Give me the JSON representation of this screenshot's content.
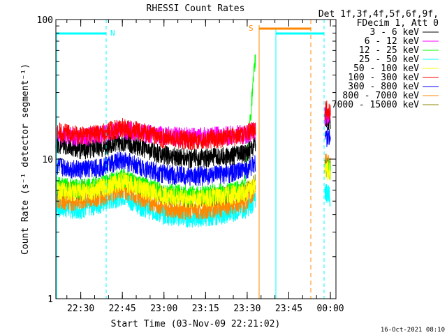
{
  "chart_data": {
    "type": "line",
    "title": "RHESSI Count Rates",
    "xlabel": "Start Time (03-Nov-09 22:21:02)",
    "ylabel": "Count Rate (s⁻¹ detector segment⁻¹)",
    "yscale": "log",
    "ylim": [
      1,
      100
    ],
    "xlim": [
      "22:21:02",
      "00:02:00"
    ],
    "x_tick_labels": [
      "22:30",
      "22:45",
      "23:00",
      "23:15",
      "23:30",
      "23:45",
      "00:00"
    ],
    "y_tick_labels": [
      "1",
      "10",
      "100"
    ],
    "legend": {
      "header": [
        "Det 1f,3f,4f,5f,6f,9f,",
        "FDecim 1, Att 0"
      ],
      "placement": "right-outside"
    },
    "series": [
      {
        "name": "3 - 6 keV",
        "color": "#000000",
        "x": [
          "22:21",
          "22:30",
          "22:37",
          "22:45",
          "22:52",
          "23:00",
          "23:10",
          "23:20",
          "23:29",
          "23:33"
        ],
        "y": [
          13,
          11.8,
          12,
          13.5,
          12.2,
          10.8,
          10.2,
          10.4,
          11,
          12.5
        ],
        "x2": [
          "23:58",
          "00:00"
        ],
        "y2": [
          20,
          19
        ]
      },
      {
        "name": "6 - 12 keV",
        "color": "#ff00ff",
        "x": [
          "22:21",
          "22:30",
          "22:37",
          "22:45",
          "22:52",
          "23:00",
          "23:10",
          "23:20",
          "23:29",
          "23:33"
        ],
        "y": [
          15,
          14.5,
          15,
          16.5,
          15.5,
          14.8,
          14.6,
          14.8,
          15.2,
          16
        ],
        "x2": [
          "23:58",
          "00:00"
        ],
        "y2": [
          21,
          20
        ]
      },
      {
        "name": "12 - 25 keV",
        "color": "#00ff00",
        "x": [
          "22:21",
          "22:30",
          "22:37",
          "22:45",
          "22:52",
          "23:00",
          "23:10",
          "23:20",
          "23:29",
          "23:33"
        ],
        "y": [
          6.5,
          6.2,
          6.6,
          7.5,
          6.6,
          5.8,
          5.6,
          5.8,
          6.2,
          55
        ],
        "x2": [
          "23:58",
          "00:00"
        ],
        "y2": [
          9,
          8.5
        ]
      },
      {
        "name": "25 - 50 keV",
        "color": "#00ffff",
        "x": [
          "22:21",
          "22:30",
          "22:37",
          "22:45",
          "22:52",
          "23:00",
          "23:10",
          "23:20",
          "23:29",
          "23:33"
        ],
        "y": [
          4.5,
          4.4,
          4.8,
          5.5,
          4.6,
          4.0,
          3.8,
          4.0,
          4.4,
          5
        ],
        "x2": [
          "23:58",
          "00:00"
        ],
        "y2": [
          6,
          5.5
        ]
      },
      {
        "name": "50 - 100 keV",
        "color": "#ffff00",
        "x": [
          "22:21",
          "22:30",
          "22:37",
          "22:45",
          "22:52",
          "23:00",
          "23:10",
          "23:20",
          "23:29",
          "23:33"
        ],
        "y": [
          6,
          5.8,
          6.2,
          7,
          6.2,
          5.5,
          5.2,
          5.4,
          5.8,
          6.5
        ],
        "x2": [
          "23:58",
          "00:00"
        ],
        "y2": [
          8.5,
          8
        ]
      },
      {
        "name": "100 - 300 keV",
        "color": "#ff0000",
        "x": [
          "22:21",
          "22:30",
          "22:37",
          "22:45",
          "22:52",
          "23:00",
          "23:10",
          "23:20",
          "23:29",
          "23:33"
        ],
        "y": [
          16,
          15,
          15.5,
          17,
          15.8,
          14.2,
          13.8,
          14.2,
          15,
          17
        ],
        "x2": [
          "23:58",
          "00:00"
        ],
        "y2": [
          23,
          22
        ]
      },
      {
        "name": "300 - 800 keV",
        "color": "#0000ff",
        "x": [
          "22:21",
          "22:30",
          "22:37",
          "22:45",
          "22:52",
          "23:00",
          "23:10",
          "23:20",
          "23:29",
          "23:33"
        ],
        "y": [
          9,
          8.4,
          8.8,
          10,
          8.8,
          7.9,
          7.6,
          7.8,
          8.3,
          9.5
        ],
        "x2": [
          "23:58",
          "00:00"
        ],
        "y2": [
          15,
          14
        ]
      },
      {
        "name": "800 - 7000 keV",
        "color": "#ff8800",
        "x": [
          "22:21",
          "22:30",
          "22:37",
          "22:45",
          "22:52",
          "23:00",
          "23:10",
          "23:20",
          "23:29",
          "23:33"
        ],
        "y": [
          5.2,
          5.0,
          5.4,
          6.2,
          5.3,
          4.6,
          4.3,
          4.5,
          4.9,
          6
        ],
        "x2": [
          "23:58",
          "00:00"
        ],
        "y2": [
          9.5,
          9
        ]
      },
      {
        "name": "7000 - 15000 keV",
        "color": "#888800",
        "x": [
          "22:21",
          "22:30",
          "22:37",
          "22:45",
          "22:52",
          "23:00",
          "23:10",
          "23:20",
          "23:29",
          "23:33"
        ],
        "y": [
          6.2,
          6.0,
          6.4,
          7.2,
          6.4,
          5.6,
          5.3,
          5.5,
          5.9,
          7
        ],
        "x2": [
          "23:58",
          "00:00"
        ],
        "y2": [
          9,
          8.5
        ]
      }
    ],
    "annotations": [
      {
        "text": "N",
        "color": "#00ffff"
      },
      {
        "text": "S",
        "color": "#ff8800"
      }
    ],
    "footer_timestamp": "16-Oct-2021 08:10"
  }
}
